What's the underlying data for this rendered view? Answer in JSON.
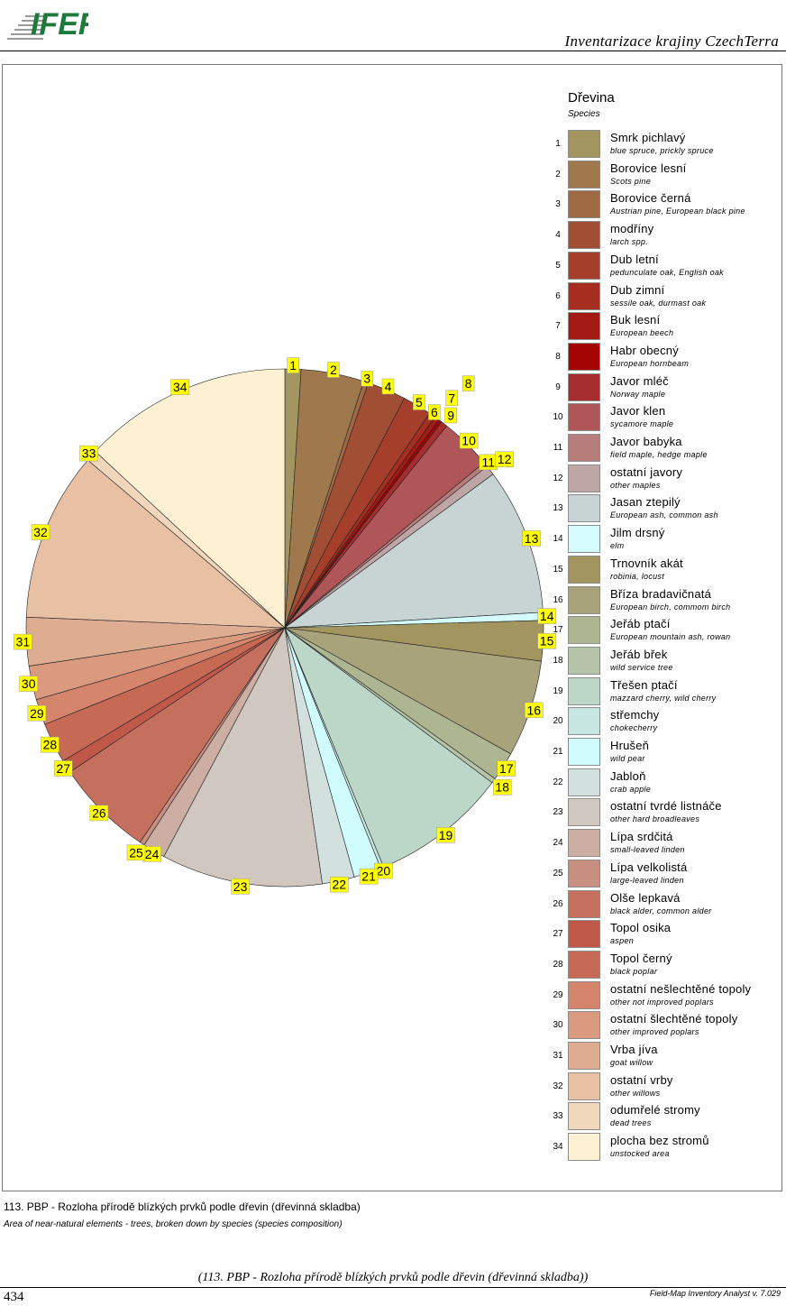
{
  "header": {
    "logo_text": "IFER",
    "title": "Inventarizace krajiny CzechTerra"
  },
  "chart_data": {
    "type": "pie",
    "title": "Dřevina",
    "subtitle": "Species",
    "slices": [
      {
        "id": "1",
        "label": "Smrk pichlavý",
        "label_en": "blue spruce, prickly spruce",
        "value": 1.0,
        "color": "#A39560"
      },
      {
        "id": "2",
        "label": "Borovice lesní",
        "label_en": "Scots pine",
        "value": 3.9,
        "color": "#A0784E"
      },
      {
        "id": "3",
        "label": "Borovice černá",
        "label_en": "Austrian pine, European black pine",
        "value": 0.3,
        "color": "#A06A44"
      },
      {
        "id": "4",
        "label": "modříny",
        "label_en": "larch spp.",
        "value": 2.4,
        "color": "#A04F35"
      },
      {
        "id": "5",
        "label": "Dub letní",
        "label_en": "pedunculate oak, English oak",
        "value": 1.8,
        "color": "#A53E2A"
      },
      {
        "id": "6",
        "label": "Dub zimní",
        "label_en": "sessile oak, durmast oak",
        "value": 0.4,
        "color": "#A52E20"
      },
      {
        "id": "7",
        "label": "Buk lesní",
        "label_en": "European beech",
        "value": 0.3,
        "color": "#A31A15"
      },
      {
        "id": "8",
        "label": "Habr obecný",
        "label_en": "European hornbeam",
        "value": 0.2,
        "color": "#A30303"
      },
      {
        "id": "9",
        "label": "Javor mléč",
        "label_en": "Norway maple",
        "value": 0.4,
        "color": "#A52D2E"
      },
      {
        "id": "10",
        "label": "Javor klen",
        "label_en": "sycamore maple",
        "value": 3.2,
        "color": "#B05659"
      },
      {
        "id": "11",
        "label": "Javor babyka",
        "label_en": "field maple, hedge maple",
        "value": 0.3,
        "color": "#B67D7B"
      },
      {
        "id": "12",
        "label": "ostatní javory",
        "label_en": "other maples",
        "value": 0.6,
        "color": "#BDA6A5"
      },
      {
        "id": "13",
        "label": "Jasan ztepilý",
        "label_en": "European ash, common ash",
        "value": 9.1,
        "color": "#C8D3D4"
      },
      {
        "id": "14",
        "label": "Jilm drsný",
        "label_en": "elm",
        "value": 0.5,
        "color": "#D4FCFE"
      },
      {
        "id": "15",
        "label": "Trnovník akát",
        "label_en": "robinia, locust",
        "value": 2.5,
        "color": "#A39560"
      },
      {
        "id": "16",
        "label": "Bříza bradavičnatá",
        "label_en": "European birch, commom birch",
        "value": 6.0,
        "color": "#A8A37A"
      },
      {
        "id": "17",
        "label": "Jeřáb ptačí",
        "label_en": "European mountain ash, rowan",
        "value": 1.8,
        "color": "#ADB591"
      },
      {
        "id": "18",
        "label": "Jeřáb břek",
        "label_en": "wild service tree",
        "value": 0.3,
        "color": "#B5C4A8"
      },
      {
        "id": "19",
        "label": "Třešen ptačí",
        "label_en": "mazzard cherry, wild cherry",
        "value": 8.5,
        "color": "#BCD6C8"
      },
      {
        "id": "20",
        "label": "střemchy",
        "label_en": "chokecherry",
        "value": 0.2,
        "color": "#C8E6E1"
      },
      {
        "id": "21",
        "label": "Hrušeň",
        "label_en": "wild pear",
        "value": 1.7,
        "color": "#D0FCFE"
      },
      {
        "id": "22",
        "label": "Jabloň",
        "label_en": "crab apple",
        "value": 2.0,
        "color": "#D2E0DE"
      },
      {
        "id": "23",
        "label": "ostatní tvrdé listnáče",
        "label_en": "other hard broadleaves",
        "value": 10.0,
        "color": "#CFC7C0"
      },
      {
        "id": "24",
        "label": "Lípa srdčitá",
        "label_en": "small-leaved linden",
        "value": 1.4,
        "color": "#CDAEA2"
      },
      {
        "id": "25",
        "label": "Lípa velkolistá",
        "label_en": "large-leaved linden",
        "value": 0.3,
        "color": "#C88E80"
      },
      {
        "id": "26",
        "label": "Olše lepkavá",
        "label_en": "black alder, common alder",
        "value": 6.1,
        "color": "#C56F5F"
      },
      {
        "id": "27",
        "label": "Topol osika",
        "label_en": "aspen",
        "value": 0.8,
        "color": "#C0584A"
      },
      {
        "id": "28",
        "label": "Topol černý",
        "label_en": "black poplar",
        "value": 2.5,
        "color": "#C66A55"
      },
      {
        "id": "29",
        "label": "ostatní nešlechtěné topoly",
        "label_en": "other not improved poplars",
        "value": 1.6,
        "color": "#D4856B"
      },
      {
        "id": "30",
        "label": "ostatní šlechtěné topoly",
        "label_en": "other improved poplars",
        "value": 2.1,
        "color": "#D99A80"
      },
      {
        "id": "31",
        "label": "Vrba jíva",
        "label_en": "goat willow",
        "value": 3.0,
        "color": "#DEAC91"
      },
      {
        "id": "32",
        "label": "ostatní vrby",
        "label_en": "other willows",
        "value": 10.5,
        "color": "#E8C0A4"
      },
      {
        "id": "33",
        "label": "odumřelé stromy",
        "label_en": "dead trees",
        "value": 0.7,
        "color": "#F0D7BC"
      },
      {
        "id": "34",
        "label": "plocha bez stromů",
        "label_en": "unstocked area",
        "value": 13.0,
        "color": "#FDF0D3"
      }
    ]
  },
  "caption": {
    "cz": "113. PBP - Rozloha přírodě blízkých prvků podle dřevin (dřevinná skladba)",
    "en": "Area of near-natural elements - trees, broken down by species (species composition)"
  },
  "footer": {
    "center": "(113. PBP - Rozloha přírodě blízkých prvků podle dřevin (dřevinná skladba))",
    "right": "Field-Map Inventory Analyst v. 7.029",
    "page_number": "434"
  }
}
